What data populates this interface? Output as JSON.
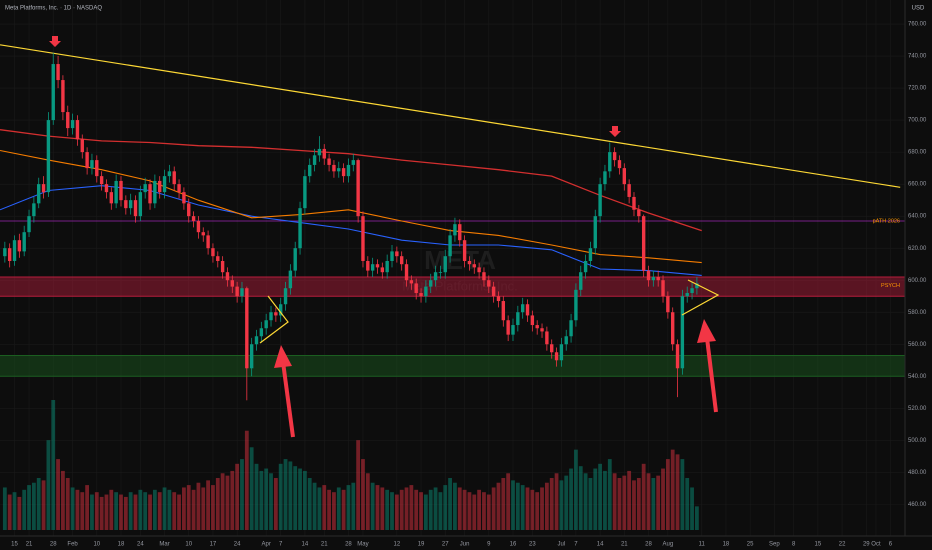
{
  "chart_data": {
    "type": "candlestick",
    "title": "Meta Platforms, Inc. · 1D · NASDAQ",
    "currency": "USD",
    "watermark_symbol": "META",
    "watermark_name": "Meta Platforms, Inc.",
    "up_color": "#089981",
    "down_color": "#f23645",
    "x": [
      0,
      1,
      2,
      3,
      4,
      5,
      6,
      7,
      8,
      9,
      10,
      11,
      12,
      13,
      14,
      15,
      16,
      17,
      18,
      19,
      20,
      21,
      22,
      23,
      24,
      25,
      26,
      27,
      28,
      29,
      30,
      31,
      32,
      33,
      34,
      35,
      36,
      37,
      38,
      39,
      40,
      41,
      42,
      43,
      44,
      45,
      46,
      47,
      48,
      49,
      50,
      51,
      52,
      53,
      54,
      55,
      56,
      57,
      58,
      59,
      60,
      61,
      62,
      63,
      64,
      65,
      66,
      67,
      68,
      69,
      70,
      71,
      72,
      73,
      74,
      75,
      76,
      77,
      78,
      79,
      80,
      81,
      82,
      83,
      84,
      85,
      86,
      87,
      88,
      89,
      90,
      91,
      92,
      93,
      94,
      95,
      96,
      97,
      98,
      99,
      100,
      101,
      102,
      103,
      104,
      105,
      106,
      107,
      108,
      109,
      110,
      111,
      112,
      113,
      114,
      115,
      116,
      117,
      118,
      119,
      120,
      121,
      122,
      123,
      124,
      125,
      126,
      127,
      128,
      129,
      130,
      131,
      132,
      133,
      134,
      135,
      136,
      137,
      138,
      139,
      140,
      141,
      142,
      143
    ],
    "open": [
      615,
      620,
      612,
      625,
      618,
      630,
      640,
      648,
      660,
      655,
      700,
      735,
      725,
      705,
      695,
      700,
      688,
      680,
      670,
      675,
      665,
      660,
      655,
      648,
      662,
      650,
      645,
      650,
      640,
      655,
      660,
      648,
      662,
      655,
      665,
      668,
      660,
      655,
      648,
      640,
      637,
      630,
      628,
      620,
      615,
      612,
      605,
      600,
      596,
      590,
      595,
      545,
      560,
      565,
      570,
      575,
      580,
      578,
      585,
      595,
      606,
      620,
      645,
      665,
      672,
      678,
      682,
      676,
      672,
      668,
      670,
      665,
      672,
      675,
      640,
      612,
      606,
      610,
      608,
      605,
      612,
      618,
      615,
      610,
      600,
      598,
      592,
      590,
      596,
      600,
      605,
      605,
      615,
      628,
      635,
      625,
      612,
      610,
      608,
      605,
      600,
      596,
      590,
      587,
      575,
      566,
      572,
      580,
      585,
      578,
      572,
      570,
      568,
      560,
      555,
      550,
      560,
      565,
      575,
      594,
      605,
      612,
      620,
      640,
      660,
      668,
      680,
      675,
      670,
      660,
      652,
      644,
      640,
      606,
      600,
      602,
      600,
      590,
      580,
      560,
      545,
      590,
      592,
      595
    ],
    "high": [
      624,
      623,
      628,
      629,
      634,
      644,
      652,
      664,
      665,
      705,
      742,
      740,
      728,
      709,
      704,
      703,
      691,
      683,
      679,
      678,
      668,
      663,
      658,
      666,
      665,
      653,
      654,
      653,
      659,
      664,
      663,
      666,
      665,
      669,
      672,
      671,
      663,
      658,
      651,
      643,
      640,
      633,
      631,
      623,
      618,
      615,
      608,
      603,
      599,
      599,
      596,
      564,
      569,
      574,
      579,
      584,
      583,
      589,
      599,
      610,
      624,
      649,
      669,
      676,
      682,
      690,
      685,
      679,
      675,
      674,
      673,
      676,
      679,
      676,
      643,
      615,
      614,
      613,
      611,
      616,
      622,
      621,
      618,
      613,
      603,
      601,
      595,
      600,
      604,
      609,
      609,
      619,
      632,
      639,
      638,
      628,
      615,
      613,
      611,
      608,
      603,
      599,
      593,
      590,
      578,
      576,
      584,
      589,
      588,
      581,
      575,
      573,
      571,
      563,
      558,
      564,
      569,
      579,
      598,
      609,
      616,
      624,
      644,
      664,
      672,
      686,
      683,
      678,
      673,
      663,
      655,
      647,
      641,
      609,
      606,
      606,
      603,
      593,
      583,
      563,
      594,
      596,
      599,
      602
    ],
    "low": [
      611,
      608,
      609,
      614,
      615,
      627,
      636,
      645,
      651,
      652,
      697,
      720,
      700,
      690,
      691,
      684,
      676,
      666,
      666,
      661,
      656,
      651,
      644,
      645,
      646,
      641,
      641,
      636,
      637,
      651,
      644,
      645,
      651,
      651,
      661,
      656,
      651,
      644,
      636,
      633,
      626,
      624,
      616,
      611,
      608,
      601,
      596,
      592,
      586,
      586,
      525,
      540,
      556,
      561,
      566,
      571,
      574,
      574,
      581,
      591,
      602,
      616,
      641,
      661,
      668,
      674,
      672,
      668,
      664,
      664,
      661,
      661,
      668,
      636,
      608,
      602,
      602,
      604,
      601,
      601,
      608,
      611,
      606,
      596,
      594,
      588,
      586,
      586,
      592,
      596,
      601,
      601,
      611,
      624,
      621,
      608,
      606,
      604,
      601,
      596,
      592,
      586,
      583,
      571,
      562,
      562,
      568,
      576,
      574,
      568,
      566,
      564,
      556,
      551,
      546,
      546,
      556,
      561,
      571,
      590,
      601,
      608,
      616,
      636,
      656,
      664,
      671,
      666,
      656,
      648,
      640,
      636,
      602,
      596,
      596,
      596,
      586,
      576,
      556,
      527,
      541,
      586,
      588,
      591
    ],
    "close": [
      620,
      612,
      625,
      618,
      630,
      640,
      648,
      660,
      655,
      700,
      735,
      725,
      705,
      695,
      700,
      688,
      680,
      670,
      675,
      665,
      660,
      655,
      648,
      662,
      650,
      645,
      650,
      640,
      655,
      660,
      648,
      662,
      655,
      665,
      668,
      660,
      655,
      648,
      640,
      637,
      630,
      628,
      620,
      615,
      612,
      605,
      600,
      596,
      590,
      595,
      545,
      560,
      565,
      570,
      575,
      580,
      578,
      585,
      595,
      606,
      620,
      645,
      665,
      672,
      678,
      682,
      676,
      672,
      668,
      670,
      665,
      672,
      675,
      640,
      612,
      606,
      610,
      608,
      605,
      612,
      618,
      615,
      610,
      600,
      598,
      592,
      590,
      596,
      600,
      605,
      605,
      615,
      628,
      635,
      625,
      612,
      610,
      608,
      605,
      600,
      596,
      590,
      587,
      575,
      566,
      572,
      580,
      585,
      578,
      572,
      570,
      568,
      560,
      555,
      550,
      560,
      565,
      575,
      594,
      605,
      612,
      620,
      640,
      660,
      668,
      680,
      675,
      670,
      660,
      652,
      644,
      640,
      606,
      600,
      602,
      600,
      590,
      580,
      560,
      545,
      590,
      592,
      595,
      598
    ],
    "volume": [
      18,
      15,
      16,
      14,
      17,
      19,
      20,
      22,
      21,
      38,
      55,
      30,
      25,
      22,
      18,
      17,
      16,
      19,
      15,
      16,
      14,
      15,
      17,
      16,
      15,
      14,
      16,
      15,
      17,
      16,
      15,
      17,
      16,
      18,
      17,
      16,
      15,
      18,
      19,
      17,
      20,
      18,
      21,
      19,
      22,
      24,
      23,
      25,
      28,
      30,
      42,
      35,
      28,
      25,
      26,
      24,
      22,
      28,
      30,
      29,
      27,
      26,
      25,
      22,
      20,
      18,
      19,
      17,
      16,
      18,
      17,
      19,
      20,
      38,
      30,
      24,
      20,
      19,
      18,
      17,
      16,
      15,
      17,
      18,
      19,
      17,
      16,
      15,
      17,
      18,
      16,
      19,
      22,
      20,
      18,
      17,
      16,
      15,
      17,
      16,
      15,
      18,
      20,
      22,
      24,
      21,
      20,
      19,
      18,
      17,
      16,
      18,
      20,
      22,
      24,
      21,
      23,
      26,
      34,
      27,
      24,
      22,
      26,
      28,
      25,
      30,
      24,
      22,
      23,
      25,
      21,
      22,
      28,
      24,
      22,
      23,
      26,
      30,
      34,
      32,
      30,
      22,
      18,
      10
    ],
    "xlim": [
      -1,
      186
    ],
    "xticks": [
      {
        "value": 2,
        "label": "15"
      },
      {
        "value": 5,
        "label": "21"
      },
      {
        "value": 10,
        "label": "28"
      },
      {
        "value": 14,
        "label": "Feb"
      },
      {
        "value": 19,
        "label": "10"
      },
      {
        "value": 24,
        "label": "18"
      },
      {
        "value": 28,
        "label": "24"
      },
      {
        "value": 33,
        "label": "Mar"
      },
      {
        "value": 38,
        "label": "10"
      },
      {
        "value": 43,
        "label": "17"
      },
      {
        "value": 48,
        "label": "24"
      },
      {
        "value": 54,
        "label": "Apr"
      },
      {
        "value": 57,
        "label": "7"
      },
      {
        "value": 62,
        "label": "14"
      },
      {
        "value": 66,
        "label": "21"
      },
      {
        "value": 71,
        "label": "28"
      },
      {
        "value": 74,
        "label": "May"
      },
      {
        "value": 81,
        "label": "12"
      },
      {
        "value": 86,
        "label": "19"
      },
      {
        "value": 91,
        "label": "27"
      },
      {
        "value": 95,
        "label": "Jun"
      },
      {
        "value": 100,
        "label": "9"
      },
      {
        "value": 105,
        "label": "16"
      },
      {
        "value": 109,
        "label": "23"
      },
      {
        "value": 115,
        "label": "Jul"
      },
      {
        "value": 118,
        "label": "7"
      },
      {
        "value": 123,
        "label": "14"
      },
      {
        "value": 128,
        "label": "21"
      },
      {
        "value": 133,
        "label": "28"
      },
      {
        "value": 137,
        "label": "Aug"
      },
      {
        "value": 144,
        "label": "11"
      },
      {
        "value": 149,
        "label": "18"
      },
      {
        "value": 154,
        "label": "25"
      },
      {
        "value": 159,
        "label": "Sep"
      },
      {
        "value": 163,
        "label": "8"
      },
      {
        "value": 168,
        "label": "15"
      },
      {
        "value": 173,
        "label": "22"
      },
      {
        "value": 178,
        "label": "29"
      },
      {
        "value": 180,
        "label": "Oct"
      },
      {
        "value": 183,
        "label": "6"
      }
    ],
    "ylim": [
      444,
      775
    ],
    "yticks": [
      {
        "value": 760,
        "label": "760.00"
      },
      {
        "value": 740,
        "label": "740.00"
      },
      {
        "value": 720,
        "label": "720.00"
      },
      {
        "value": 700,
        "label": "700.00"
      },
      {
        "value": 680,
        "label": "680.00"
      },
      {
        "value": 660,
        "label": "660.00"
      },
      {
        "value": 640,
        "label": "640.00"
      },
      {
        "value": 620,
        "label": "620.00"
      },
      {
        "value": 600,
        "label": "600.00"
      },
      {
        "value": 580,
        "label": "580.00"
      },
      {
        "value": 560,
        "label": "560.00"
      },
      {
        "value": 540,
        "label": "540.00"
      },
      {
        "value": 520,
        "label": "520.00"
      },
      {
        "value": 500,
        "label": "500.00"
      },
      {
        "value": 480,
        "label": "480.00"
      },
      {
        "value": 460,
        "label": "460.00"
      }
    ],
    "grid": true,
    "lines": [
      {
        "color": "#d32f2f",
        "width": 1.3,
        "x": [
          -1,
          9,
          20,
          30,
          40,
          51,
          61,
          71,
          82,
          92,
          102,
          113,
          123,
          133,
          144
        ],
        "values": [
          694,
          690,
          687,
          686,
          684,
          683,
          681,
          679,
          675,
          672,
          669,
          665,
          653,
          642,
          631
        ]
      },
      {
        "color": "#2962ff",
        "width": 1.1,
        "x": [
          -1,
          9,
          20,
          30,
          40,
          51,
          61,
          71,
          82,
          92,
          102,
          113,
          123,
          133,
          144
        ],
        "values": [
          644,
          656,
          659,
          656,
          647,
          640,
          636,
          632,
          625,
          622,
          622,
          619,
          607,
          606,
          603
        ]
      },
      {
        "color": "#f57c00",
        "width": 1.1,
        "x": [
          -1,
          9,
          20,
          30,
          40,
          51,
          61,
          71,
          82,
          92,
          102,
          113,
          123,
          133,
          144
        ],
        "values": [
          681,
          675,
          669,
          662,
          650,
          639,
          641,
          644,
          637,
          631,
          628,
          622,
          616,
          614,
          611
        ]
      },
      {
        "color": "#fdd835",
        "width": 1.2,
        "x": [
          -1,
          185
        ],
        "values": [
          747,
          658
        ]
      }
    ],
    "levels": [
      {
        "label": "pATH 2026",
        "value": 637,
        "color": "#9c27b0",
        "label_color": "#ff9800"
      }
    ],
    "zones": [
      {
        "label": "PSYCH",
        "range": [
          590,
          602
        ],
        "color": "#b71c3c",
        "label_color": "#ff9800"
      },
      {
        "range": [
          540,
          553
        ],
        "color": "#1b5e20"
      }
    ]
  }
}
